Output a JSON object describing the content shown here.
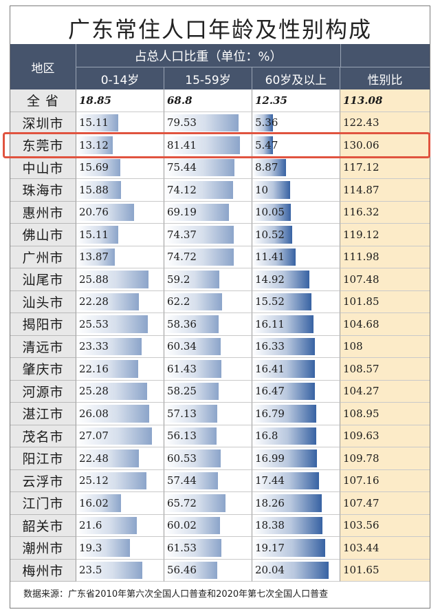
{
  "title": "广东常住人口年龄及性别构成",
  "headers": {
    "region": "地区",
    "group": "占总人口比重（单位：%）",
    "age_0_14": "0-14岁",
    "age_15_59": "15-59岁",
    "age_60": "60岁及以上",
    "sex_ratio": "性别比"
  },
  "source": "数据来源：广东省2010年第六次全国人口普查和2020年第七次全国人口普查",
  "highlight_region": "东莞市",
  "colors": {
    "header_bg": "#46546c",
    "bar_dark": "#2d5a9e",
    "sex_bg": "#fcebc8",
    "highlight": "#e0533f"
  },
  "chart_data": {
    "type": "table",
    "title": "广东常住人口年龄及性别构成",
    "columns": [
      "地区",
      "0-14岁",
      "15-59岁",
      "60岁及以上",
      "性别比"
    ],
    "rows": [
      {
        "region": "全 省",
        "a0_14": "18.85",
        "a15_59": "68.8",
        "a60": "12.35",
        "sex": "113.08"
      },
      {
        "region": "深圳市",
        "a0_14": "15.11",
        "a15_59": "79.53",
        "a60": "5.36",
        "sex": "122.43"
      },
      {
        "region": "东莞市",
        "a0_14": "13.12",
        "a15_59": "81.41",
        "a60": "5.47",
        "sex": "130.06"
      },
      {
        "region": "中山市",
        "a0_14": "15.69",
        "a15_59": "75.44",
        "a60": "8.87",
        "sex": "117.12"
      },
      {
        "region": "珠海市",
        "a0_14": "15.88",
        "a15_59": "74.12",
        "a60": "10",
        "sex": "114.87"
      },
      {
        "region": "惠州市",
        "a0_14": "20.76",
        "a15_59": "69.19",
        "a60": "10.05",
        "sex": "116.32"
      },
      {
        "region": "佛山市",
        "a0_14": "15.11",
        "a15_59": "74.37",
        "a60": "10.52",
        "sex": "119.12"
      },
      {
        "region": "广州市",
        "a0_14": "13.87",
        "a15_59": "74.72",
        "a60": "11.41",
        "sex": "111.98"
      },
      {
        "region": "汕尾市",
        "a0_14": "25.88",
        "a15_59": "59.2",
        "a60": "14.92",
        "sex": "107.48"
      },
      {
        "region": "汕头市",
        "a0_14": "22.28",
        "a15_59": "62.2",
        "a60": "15.52",
        "sex": "101.85"
      },
      {
        "region": "揭阳市",
        "a0_14": "25.53",
        "a15_59": "58.36",
        "a60": "16.11",
        "sex": "104.68"
      },
      {
        "region": "清远市",
        "a0_14": "23.33",
        "a15_59": "60.34",
        "a60": "16.33",
        "sex": "108"
      },
      {
        "region": "肇庆市",
        "a0_14": "22.16",
        "a15_59": "61.43",
        "a60": "16.41",
        "sex": "108.57"
      },
      {
        "region": "河源市",
        "a0_14": "25.28",
        "a15_59": "58.25",
        "a60": "16.47",
        "sex": "104.27"
      },
      {
        "region": "湛江市",
        "a0_14": "26.08",
        "a15_59": "57.13",
        "a60": "16.79",
        "sex": "108.95"
      },
      {
        "region": "茂名市",
        "a0_14": "27.07",
        "a15_59": "56.13",
        "a60": "16.8",
        "sex": "109.63"
      },
      {
        "region": "阳江市",
        "a0_14": "22.48",
        "a15_59": "60.53",
        "a60": "16.99",
        "sex": "109.78"
      },
      {
        "region": "云浮市",
        "a0_14": "25.12",
        "a15_59": "57.44",
        "a60": "17.44",
        "sex": "107.16"
      },
      {
        "region": "江门市",
        "a0_14": "16.02",
        "a15_59": "65.72",
        "a60": "18.26",
        "sex": "107.47"
      },
      {
        "region": "韶关市",
        "a0_14": "21.6",
        "a15_59": "60.02",
        "a60": "18.38",
        "sex": "103.56"
      },
      {
        "region": "潮州市",
        "a0_14": "19.3",
        "a15_59": "61.53",
        "a60": "19.17",
        "sex": "103.44"
      },
      {
        "region": "梅州市",
        "a0_14": "23.5",
        "a15_59": "56.46",
        "a60": "20.04",
        "sex": "101.65"
      }
    ]
  }
}
